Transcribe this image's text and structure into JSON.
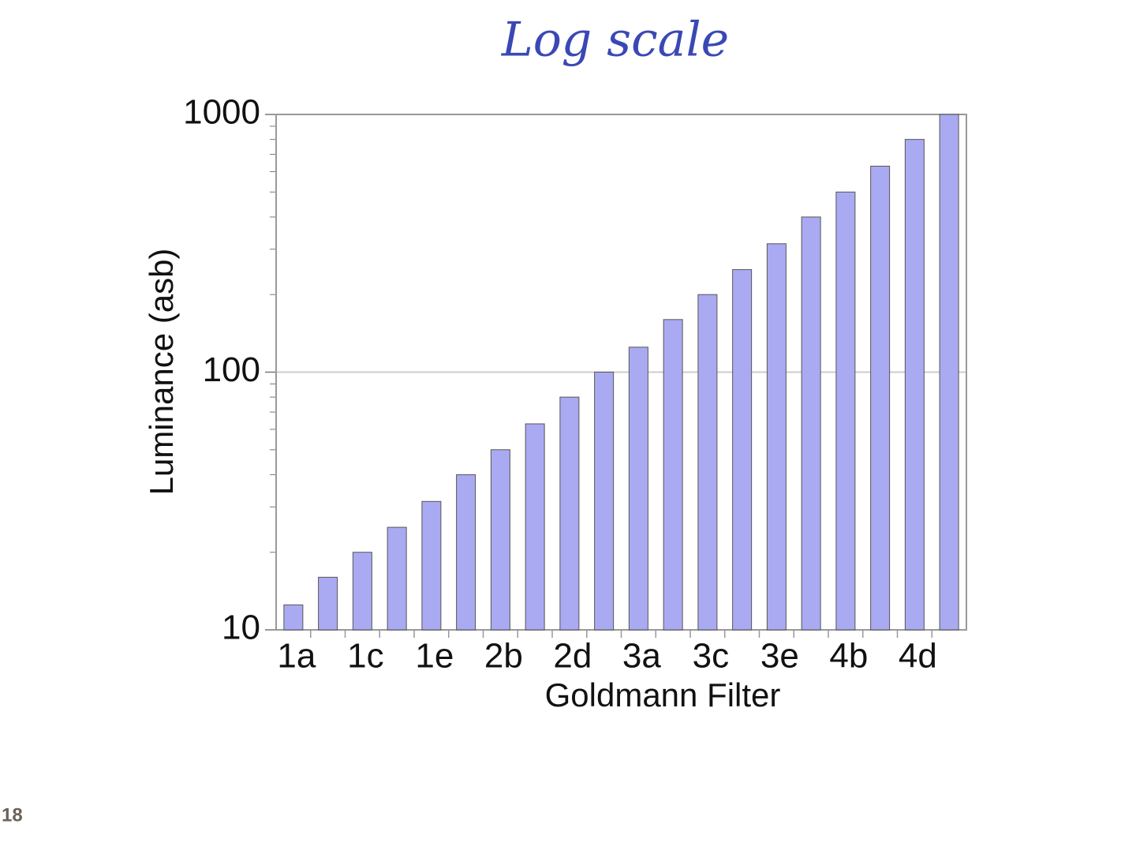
{
  "chart_data": {
    "type": "bar",
    "annotation": "Log scale",
    "categories": [
      "1a",
      null,
      "1c",
      null,
      "1e",
      null,
      "2b",
      null,
      "2d",
      null,
      "3a",
      null,
      "3c",
      null,
      "3e",
      null,
      "4b",
      null,
      "4d",
      null
    ],
    "values": [
      12.5,
      16,
      20,
      25,
      31.5,
      40,
      50,
      63,
      80,
      100,
      125,
      160,
      200,
      250,
      315,
      400,
      500,
      630,
      800,
      1000
    ],
    "color": "#aaaaf2",
    "x_label": "Goldmann Filter",
    "y_label": "Luminance (asb)",
    "ylim": [
      10,
      1000
    ],
    "yticks": [
      10,
      100,
      1000
    ],
    "log_y": true,
    "grid": true
  },
  "page_number": "18"
}
